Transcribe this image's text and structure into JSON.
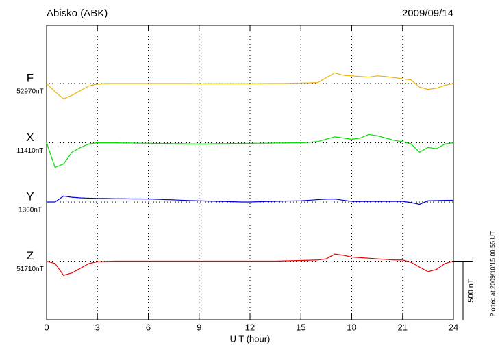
{
  "chart_data": {
    "type": "line",
    "title": "Abisko (ABK)",
    "date": "2009/09/14",
    "x_label": "U T (hour)",
    "footnote": "Plotted at 2009/10/15 00:55 UT",
    "scale_bar": {
      "value": 500,
      "label": "500 nT"
    },
    "xlim": [
      0,
      24
    ],
    "xticks": [
      0,
      3,
      6,
      9,
      12,
      15,
      18,
      21,
      24
    ],
    "grid": true,
    "x": [
      0,
      0.5,
      1,
      1.5,
      2,
      2.5,
      3,
      3.5,
      4,
      4.5,
      5,
      5.5,
      6,
      6.5,
      7,
      7.5,
      8,
      8.5,
      9,
      9.5,
      10,
      10.5,
      11,
      11.5,
      12,
      12.5,
      13,
      13.5,
      14,
      14.5,
      15,
      15.5,
      16,
      16.5,
      17,
      17.5,
      18,
      18.5,
      19,
      19.5,
      20,
      20.5,
      21,
      21.5,
      22,
      22.5,
      23,
      23.5,
      24
    ],
    "series": [
      {
        "name": "F",
        "color": "#f0b000",
        "baseline": {
          "value": 52970,
          "label": "52970nT"
        },
        "values": [
          52970,
          52900,
          52840,
          52870,
          52910,
          52950,
          52965,
          52970,
          52970,
          52970,
          52970,
          52970,
          52970,
          52970,
          52970,
          52970,
          52970,
          52970,
          52968,
          52968,
          52968,
          52968,
          52968,
          52968,
          52968,
          52968,
          52970,
          52970,
          52970,
          52972,
          52974,
          52975,
          52978,
          53020,
          53060,
          53040,
          53035,
          53030,
          53025,
          53035,
          53030,
          53020,
          53010,
          53000,
          52940,
          52920,
          52930,
          52955,
          52970
        ]
      },
      {
        "name": "X",
        "color": "#00dd00",
        "baseline": {
          "value": 11410,
          "label": "11410nT"
        },
        "values": [
          11410,
          11200,
          11230,
          11330,
          11370,
          11400,
          11410,
          11410,
          11410,
          11408,
          11408,
          11406,
          11406,
          11404,
          11404,
          11402,
          11402,
          11400,
          11400,
          11400,
          11402,
          11402,
          11404,
          11404,
          11405,
          11406,
          11406,
          11408,
          11408,
          11410,
          11410,
          11414,
          11420,
          11440,
          11460,
          11450,
          11440,
          11450,
          11480,
          11470,
          11450,
          11430,
          11420,
          11400,
          11330,
          11370,
          11360,
          11400,
          11410
        ]
      },
      {
        "name": "Y",
        "color": "#0000dd",
        "baseline": {
          "value": 1360,
          "label": "1360nT"
        },
        "values": [
          1360,
          1360,
          1410,
          1400,
          1395,
          1392,
          1390,
          1390,
          1388,
          1388,
          1386,
          1386,
          1385,
          1383,
          1380,
          1378,
          1375,
          1372,
          1370,
          1368,
          1366,
          1364,
          1362,
          1360,
          1360,
          1362,
          1364,
          1366,
          1368,
          1369,
          1370,
          1375,
          1380,
          1384,
          1385,
          1375,
          1365,
          1364,
          1365,
          1366,
          1365,
          1365,
          1365,
          1355,
          1340,
          1370,
          1372,
          1374,
          1375
        ]
      },
      {
        "name": "Z",
        "color": "#ee0000",
        "baseline": {
          "value": 51710,
          "label": "51710nT"
        },
        "values": [
          51710,
          51690,
          51590,
          51610,
          51650,
          51690,
          51705,
          51708,
          51710,
          51710,
          51710,
          51710,
          51710,
          51710,
          51710,
          51710,
          51710,
          51710,
          51710,
          51710,
          51710,
          51710,
          51710,
          51710,
          51710,
          51710,
          51710,
          51710,
          51712,
          51714,
          51716,
          51718,
          51720,
          51730,
          51770,
          51760,
          51745,
          51740,
          51735,
          51730,
          51725,
          51720,
          51720,
          51700,
          51660,
          51620,
          51640,
          51690,
          51710
        ]
      }
    ]
  }
}
